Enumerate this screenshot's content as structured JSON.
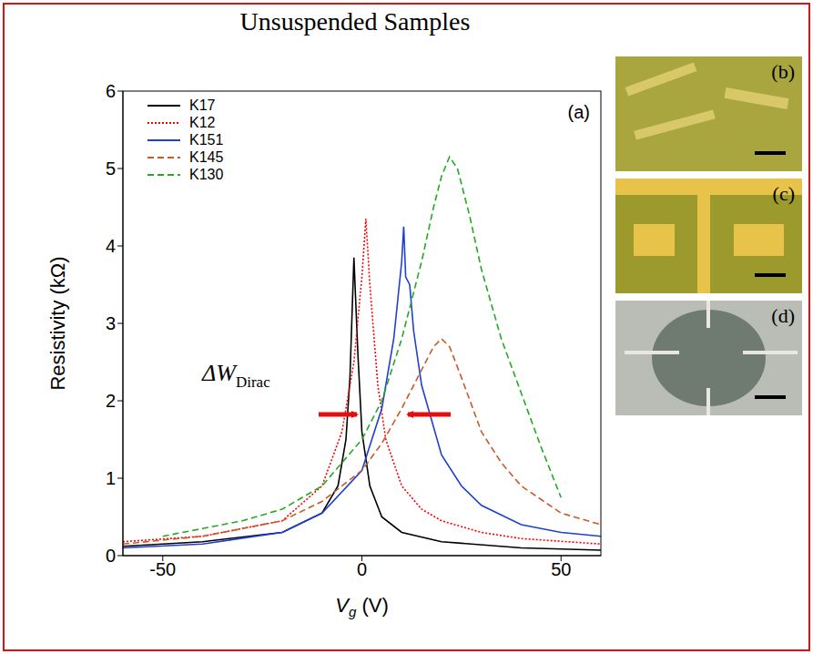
{
  "chart_data": {
    "type": "line",
    "title": "Unsuspended Samples",
    "panel_label": "(a)",
    "x_label": {
      "text": "V",
      "sub": "g",
      "suffix": " (V)"
    },
    "y_label": "Resistivity (kΩ)",
    "xlim": [
      -60,
      60
    ],
    "xticks": [
      -50,
      0,
      50
    ],
    "ylim": [
      0,
      6
    ],
    "yticks": [
      0,
      1,
      2,
      3,
      4,
      5,
      6
    ],
    "legend": "upper left",
    "annotation": {
      "text": "ΔW",
      "sub": "Dirac"
    },
    "series": [
      {
        "name": "K17",
        "color": "#000000",
        "line_style": "solid",
        "x": [
          -60,
          -40,
          -20,
          -10,
          -6,
          -4,
          -3,
          -2,
          -1,
          0,
          2,
          5,
          10,
          20,
          40,
          60
        ],
        "values": [
          0.12,
          0.18,
          0.3,
          0.55,
          0.9,
          1.5,
          2.3,
          3.85,
          2.6,
          1.6,
          0.9,
          0.5,
          0.3,
          0.18,
          0.1,
          0.07
        ]
      },
      {
        "name": "K12",
        "color": "#ff0000",
        "line_style": "dotted",
        "x": [
          -60,
          -40,
          -20,
          -10,
          -5,
          -2,
          0,
          1,
          2,
          4,
          6,
          10,
          15,
          20,
          30,
          40,
          60
        ],
        "values": [
          0.18,
          0.25,
          0.45,
          0.9,
          1.6,
          2.5,
          3.6,
          4.35,
          3.5,
          2.2,
          1.5,
          0.9,
          0.6,
          0.45,
          0.3,
          0.22,
          0.15
        ]
      },
      {
        "name": "K151",
        "color": "#1f3fd0",
        "line_style": "solid",
        "x": [
          -60,
          -40,
          -20,
          -10,
          0,
          5,
          8,
          10,
          10.5,
          11,
          12,
          13,
          15,
          20,
          25,
          30,
          40,
          50,
          60
        ],
        "values": [
          0.1,
          0.15,
          0.3,
          0.55,
          1.1,
          1.9,
          2.8,
          3.8,
          4.25,
          3.6,
          3.5,
          2.9,
          2.2,
          1.3,
          0.9,
          0.65,
          0.4,
          0.3,
          0.25
        ]
      },
      {
        "name": "K145",
        "color": "#c85a28",
        "line_style": "dashed",
        "x": [
          -60,
          -40,
          -20,
          -10,
          0,
          5,
          10,
          15,
          18,
          20,
          22,
          25,
          30,
          35,
          40,
          50,
          60
        ],
        "values": [
          0.15,
          0.25,
          0.45,
          0.7,
          1.1,
          1.45,
          1.9,
          2.4,
          2.7,
          2.8,
          2.7,
          2.3,
          1.6,
          1.2,
          0.9,
          0.55,
          0.4
        ]
      },
      {
        "name": "K130",
        "color": "#22aa22",
        "line_style": "dashed",
        "x": [
          -50,
          -40,
          -30,
          -20,
          -10,
          0,
          5,
          10,
          15,
          18,
          20,
          22,
          24,
          27,
          30,
          35,
          40,
          45,
          50
        ],
        "values": [
          0.25,
          0.35,
          0.45,
          0.6,
          0.9,
          1.5,
          2.0,
          2.8,
          3.8,
          4.5,
          4.9,
          5.15,
          5.0,
          4.4,
          3.7,
          2.8,
          2.1,
          1.4,
          0.75
        ]
      }
    ],
    "images": [
      {
        "label": "(b)"
      },
      {
        "label": "(c)"
      },
      {
        "label": "(d)"
      }
    ]
  }
}
